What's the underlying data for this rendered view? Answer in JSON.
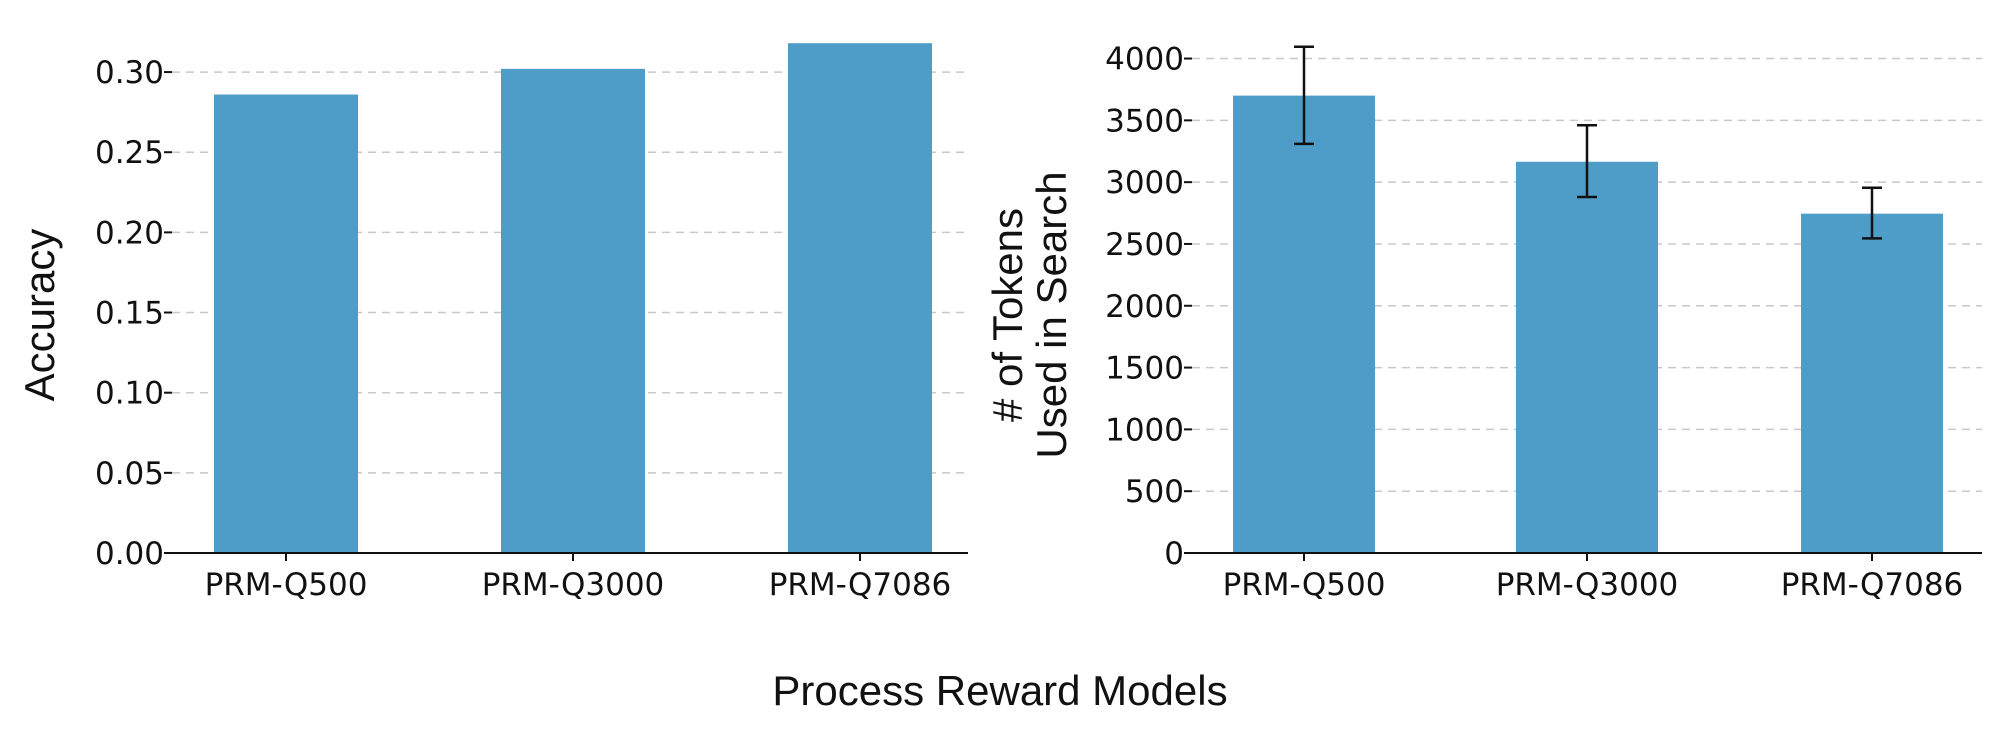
{
  "figure": {
    "shared_xlabel": "Process Reward Models"
  },
  "colors": {
    "bar": "#4e9dc9"
  },
  "chart_data": [
    {
      "type": "bar",
      "title": "",
      "categories": [
        "PRM-Q500",
        "PRM-Q3000",
        "PRM-Q7086"
      ],
      "values": [
        0.286,
        0.302,
        0.318
      ],
      "xlabel": "",
      "ylabel": "Accuracy",
      "ylim": [
        0,
        0.32
      ],
      "yticks": [
        0.0,
        0.05,
        0.1,
        0.15,
        0.2,
        0.25,
        0.3
      ],
      "ytick_labels": [
        "0.00",
        "0.05",
        "0.10",
        "0.15",
        "0.20",
        "0.25",
        "0.30"
      ],
      "grid": "horizontal-dashed"
    },
    {
      "type": "bar",
      "title": "",
      "categories": [
        "PRM-Q500",
        "PRM-Q3000",
        "PRM-Q7086"
      ],
      "values": [
        3700,
        3165,
        2745
      ],
      "error": [
        [
          3310,
          4095
        ],
        [
          2880,
          3460
        ],
        [
          2545,
          2955
        ]
      ],
      "xlabel": "",
      "ylabel": [
        "# of Tokens",
        "Used in Search"
      ],
      "ylim": [
        0,
        4150
      ],
      "yticks": [
        0,
        500,
        1000,
        1500,
        2000,
        2500,
        3000,
        3500,
        4000
      ],
      "ytick_labels": [
        "0",
        "500",
        "1000",
        "1500",
        "2000",
        "2500",
        "3000",
        "3500",
        "4000"
      ],
      "grid": "horizontal-dashed"
    }
  ]
}
